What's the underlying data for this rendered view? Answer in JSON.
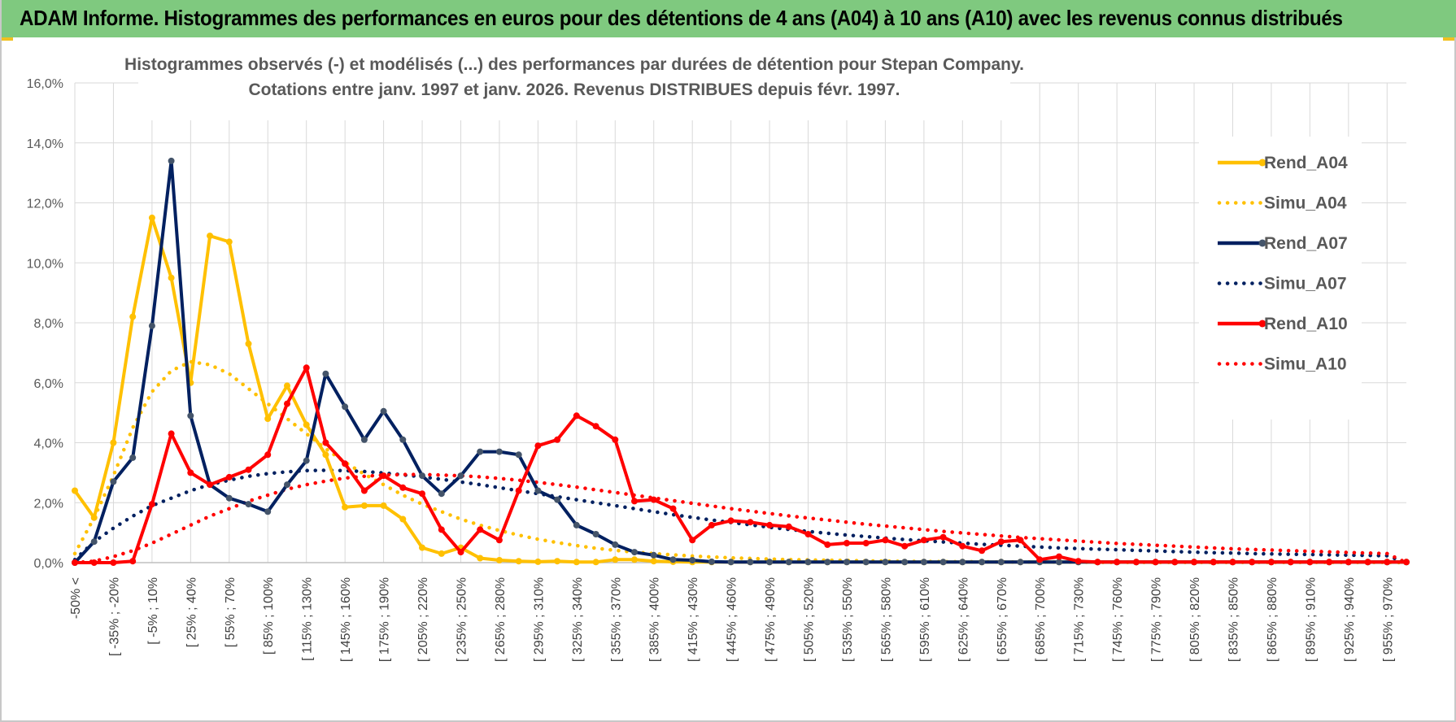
{
  "header": {
    "title": "ADAM Informe. Histogrammes des performances en euros pour des détentions de 4 ans (A04) à 10 ans (A10) avec les revenus connus distribués",
    "background": "#7fc97f"
  },
  "chart_data": {
    "type": "line",
    "title": "Histogrammes observés (-) et modélisés (...) des performances par durées de détention pour Stepan Company.",
    "subtitle": "Cotations entre janv. 1997 et janv. 2026. Revenus DISTRIBUES depuis févr. 1997.",
    "ylim": [
      0,
      16
    ],
    "y_ticks": [
      "0,0%",
      "2,0%",
      "4,0%",
      "6,0%",
      "8,0%",
      "10,0%",
      "12,0%",
      "14,0%",
      "16,0%"
    ],
    "y_unit": "%",
    "grid": true,
    "legend_position": "right",
    "x_tick_labels": [
      "-50% <",
      "[ -35% ; -20%",
      "[ -5% ; 10%",
      "[ 25% ; 40%",
      "[ 55% ; 70%",
      "[ 85% ; 100%",
      "[ 115% ; 130%",
      "[ 145% ; 160%",
      "[ 175% ; 190%",
      "[ 205% ; 220%",
      "[ 235% ; 250%",
      "[ 265% ; 280%",
      "[ 295% ; 310%",
      "[ 325% ; 340%",
      "[ 355% ; 370%",
      "[ 385% ; 400%",
      "[ 415% ; 430%",
      "[ 445% ; 460%",
      "[ 475% ; 490%",
      "[ 505% ; 520%",
      "[ 535% ; 550%",
      "[ 565% ; 580%",
      "[ 595% ; 610%",
      "[ 625% ; 640%",
      "[ 655% ; 670%",
      "[ 685% ; 700%",
      "[ 715% ; 730%",
      "[ 745% ; 760%",
      "[ 775% ; 790%",
      "[ 805% ; 820%",
      "[ 835% ; 850%",
      "[ 865% ; 880%",
      "[ 895% ; 910%",
      "[ 925% ; 940%",
      "[ 955% ; 970%"
    ],
    "x_tick_note": "x axis has 70 bins (width 15%) from -50% < to 985% and more; every other bin is labeled",
    "series": [
      {
        "name": "Rend_A04",
        "color": "#ffc000",
        "style": "solid",
        "values": [
          2.4,
          1.5,
          4.0,
          8.2,
          11.5,
          9.5,
          6.0,
          10.9,
          10.7,
          7.3,
          4.8,
          5.9,
          4.6,
          3.6,
          1.85,
          1.9,
          1.9,
          1.45,
          0.5,
          0.3,
          0.5,
          0.15,
          0.08,
          0.05,
          0.03,
          0.05,
          0.02,
          0.02,
          0.1,
          0.1,
          0.05,
          0.03,
          0.02,
          0.02,
          0.02,
          0.02,
          0.02,
          0.02,
          0.02,
          0.02,
          0.02,
          0.02,
          0.02,
          0.02,
          0.02,
          0.02,
          0.02,
          0.02,
          0.02,
          0.02,
          0.02,
          0.02,
          0.02,
          0.02,
          0.02,
          0.02,
          0.02,
          0.02,
          0.02,
          0.02,
          0.02,
          0.02,
          0.02,
          0.02,
          0.02,
          0.02,
          0.02,
          0.02,
          0.02,
          0.02
        ]
      },
      {
        "name": "Simu_A04",
        "color": "#ffc000",
        "style": "dotted",
        "values": [
          0.3,
          1.5,
          2.9,
          4.5,
          5.7,
          6.4,
          6.7,
          6.6,
          6.3,
          5.8,
          5.3,
          4.8,
          4.3,
          3.8,
          3.35,
          2.95,
          2.6,
          2.25,
          1.95,
          1.7,
          1.45,
          1.25,
          1.07,
          0.92,
          0.78,
          0.67,
          0.57,
          0.48,
          0.41,
          0.35,
          0.3,
          0.26,
          0.22,
          0.19,
          0.16,
          0.14,
          0.12,
          0.1,
          0.09,
          0.08,
          0.07,
          0.06,
          0.05,
          0.04,
          0.04,
          0.03,
          0.03,
          0.03,
          0.02,
          0.02,
          0.02,
          0.02,
          0.02,
          0.01,
          0.01,
          0.01,
          0.01,
          0.01,
          0.01,
          0.01,
          0.01,
          0.01,
          0.01,
          0.01,
          0.01,
          0.01,
          0.01,
          0.01,
          0.01,
          0.0
        ]
      },
      {
        "name": "Rend_A07",
        "color": "#002060",
        "style": "solid",
        "values": [
          0.0,
          0.7,
          2.7,
          3.5,
          7.9,
          13.4,
          4.9,
          2.6,
          2.15,
          1.95,
          1.7,
          2.6,
          3.4,
          6.3,
          5.2,
          4.1,
          5.05,
          4.1,
          2.9,
          2.3,
          2.9,
          3.7,
          3.7,
          3.6,
          2.4,
          2.1,
          1.25,
          0.95,
          0.6,
          0.35,
          0.25,
          0.1,
          0.08,
          0.03,
          0.02,
          0.02,
          0.02,
          0.02,
          0.02,
          0.02,
          0.02,
          0.02,
          0.02,
          0.02,
          0.02,
          0.02,
          0.02,
          0.02,
          0.02,
          0.02,
          0.02,
          0.02,
          0.02,
          0.02,
          0.02,
          0.02,
          0.02,
          0.02,
          0.02,
          0.02,
          0.02,
          0.02,
          0.02,
          0.02,
          0.02,
          0.02,
          0.02,
          0.02,
          0.02,
          0.02
        ]
      },
      {
        "name": "Simu_A07",
        "color": "#002060",
        "style": "dotted",
        "values": [
          0.1,
          0.7,
          1.15,
          1.55,
          1.9,
          2.15,
          2.4,
          2.6,
          2.75,
          2.88,
          2.97,
          3.03,
          3.07,
          3.08,
          3.07,
          3.04,
          2.99,
          2.93,
          2.86,
          2.78,
          2.69,
          2.6,
          2.5,
          2.4,
          2.3,
          2.2,
          2.1,
          2.0,
          1.9,
          1.8,
          1.7,
          1.6,
          1.51,
          1.42,
          1.34,
          1.26,
          1.18,
          1.11,
          1.04,
          0.98,
          0.92,
          0.87,
          0.82,
          0.77,
          0.73,
          0.69,
          0.65,
          0.61,
          0.58,
          0.55,
          0.52,
          0.49,
          0.47,
          0.45,
          0.43,
          0.41,
          0.39,
          0.37,
          0.35,
          0.33,
          0.32,
          0.3,
          0.29,
          0.28,
          0.27,
          0.26,
          0.25,
          0.24,
          0.23,
          0.0
        ]
      },
      {
        "name": "Rend_A10",
        "color": "#ff0000",
        "style": "solid",
        "values": [
          0.0,
          0.0,
          0.0,
          0.05,
          1.95,
          4.3,
          3.0,
          2.6,
          2.85,
          3.1,
          3.6,
          5.3,
          6.5,
          4.0,
          3.3,
          2.4,
          2.9,
          2.5,
          2.3,
          1.1,
          0.35,
          1.1,
          0.75,
          2.4,
          3.9,
          4.1,
          4.9,
          4.55,
          4.1,
          2.05,
          2.1,
          1.8,
          0.75,
          1.25,
          1.4,
          1.35,
          1.25,
          1.2,
          0.95,
          0.6,
          0.65,
          0.65,
          0.75,
          0.55,
          0.75,
          0.85,
          0.55,
          0.4,
          0.7,
          0.75,
          0.1,
          0.2,
          0.05,
          0.02,
          0.02,
          0.02,
          0.02,
          0.02,
          0.02,
          0.02,
          0.02,
          0.02,
          0.02,
          0.02,
          0.02,
          0.02,
          0.02,
          0.02,
          0.02,
          0.02
        ]
      },
      {
        "name": "Simu_A10",
        "color": "#ff0000",
        "style": "dotted",
        "values": [
          0.0,
          0.05,
          0.2,
          0.4,
          0.65,
          0.95,
          1.25,
          1.55,
          1.8,
          2.05,
          2.25,
          2.45,
          2.6,
          2.72,
          2.82,
          2.88,
          2.92,
          2.94,
          2.94,
          2.92,
          2.9,
          2.86,
          2.81,
          2.75,
          2.68,
          2.6,
          2.52,
          2.43,
          2.34,
          2.25,
          2.16,
          2.07,
          1.98,
          1.89,
          1.8,
          1.72,
          1.64,
          1.56,
          1.49,
          1.42,
          1.35,
          1.28,
          1.22,
          1.16,
          1.1,
          1.04,
          0.99,
          0.94,
          0.89,
          0.84,
          0.8,
          0.76,
          0.72,
          0.68,
          0.64,
          0.61,
          0.58,
          0.55,
          0.52,
          0.49,
          0.46,
          0.44,
          0.42,
          0.4,
          0.38,
          0.36,
          0.34,
          0.32,
          0.3,
          0.0
        ]
      }
    ]
  }
}
